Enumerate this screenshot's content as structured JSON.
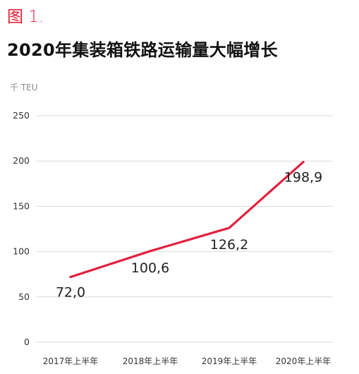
{
  "figure_label": "图 1.",
  "chart_data": {
    "type": "line",
    "title": "2020年集装箱铁路运输量大幅增长",
    "ylabel": "千 TEU",
    "xlabel": "",
    "categories": [
      "2017年上半年",
      "2018年上半年",
      "2019年上半年",
      "2020年上半年"
    ],
    "series": [
      {
        "values": [
          72.0,
          100.6,
          126.2,
          198.9
        ],
        "value_labels": [
          "72,0",
          "100,6",
          "126,2",
          "198,9"
        ],
        "color": "#e0213f"
      }
    ],
    "ylim": [
      0,
      250
    ],
    "yticks": [
      0,
      50,
      100,
      150,
      200,
      250
    ],
    "grid": "horizontal",
    "legend": "none"
  }
}
